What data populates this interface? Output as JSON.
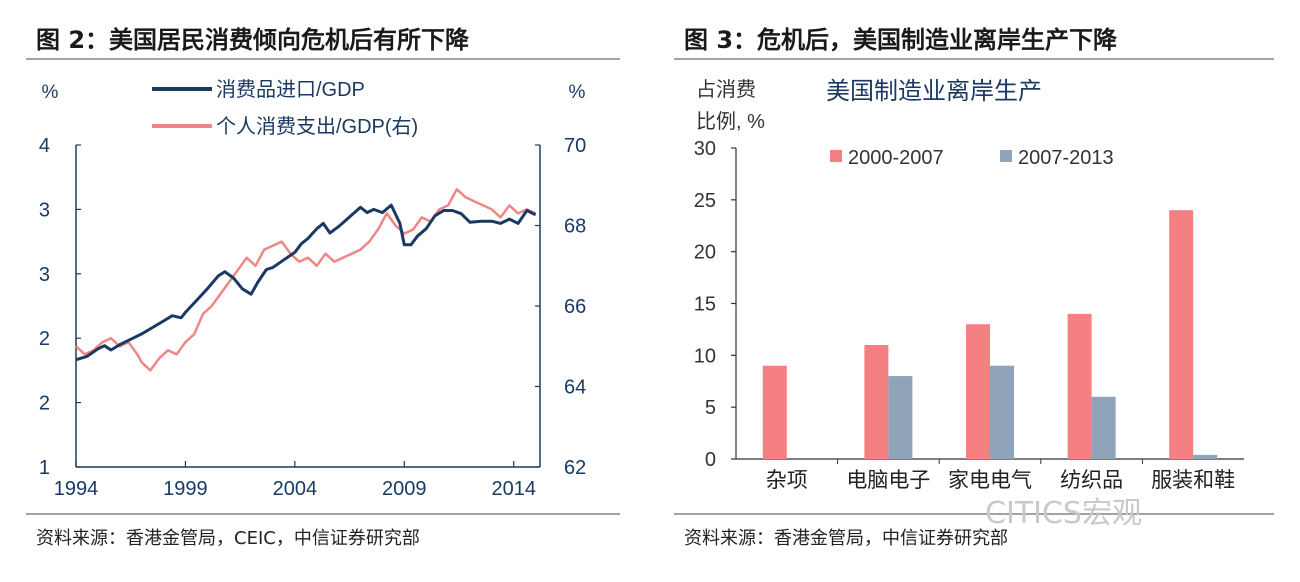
{
  "panels": {
    "left": {
      "title": "图 2：美国居民消费倾向危机后有所下降",
      "source": "资料来源：香港金管局，CEIC，中信证券研究部"
    },
    "right": {
      "title": "图 3：危机后，美国制造业离岸生产下降",
      "source": "资料来源：香港金管局，中信证券研究部"
    }
  },
  "watermark": "CITICS宏观",
  "chart_data": [
    {
      "type": "line",
      "title": "图 2：美国居民消费倾向危机后有所下降",
      "left_axis": {
        "unit": "%",
        "ylim": [
          1,
          4
        ],
        "tick_labels": [
          "1",
          "2",
          "2",
          "3",
          "3",
          "4"
        ]
      },
      "right_axis": {
        "unit": "%",
        "ylim": [
          62,
          70
        ],
        "tick_labels": [
          "62",
          "64",
          "66",
          "68",
          "70"
        ]
      },
      "x_ticks": [
        1994,
        1999,
        2004,
        2009,
        2014
      ],
      "xlim": [
        1994,
        2015.2
      ],
      "legend": [
        "消费品进口/GDP",
        "个人消费支出/GDP(右)"
      ],
      "series": [
        {
          "name": "消费品进口/GDP",
          "axis": "left",
          "color": "#1b3a63",
          "x": [
            1994.0,
            1994.5,
            1995.0,
            1995.3,
            1995.6,
            1996.0,
            1996.5,
            1997.0,
            1997.5,
            1998.0,
            1998.4,
            1998.8,
            1999.0,
            1999.5,
            2000.0,
            2000.5,
            2000.8,
            2001.2,
            2001.6,
            2002.0,
            2002.3,
            2002.7,
            2003.0,
            2003.5,
            2004.0,
            2004.3,
            2004.6,
            2005.0,
            2005.3,
            2005.6,
            2006.0,
            2006.5,
            2007.0,
            2007.3,
            2007.6,
            2008.0,
            2008.4,
            2008.8,
            2009.0,
            2009.3,
            2009.6,
            2010.0,
            2010.4,
            2010.8,
            2011.2,
            2011.6,
            2012.0,
            2012.5,
            2013.0,
            2013.4,
            2013.8,
            2014.2,
            2014.6,
            2015.0
          ],
          "values": [
            2.0,
            2.03,
            2.1,
            2.13,
            2.09,
            2.14,
            2.19,
            2.24,
            2.3,
            2.36,
            2.41,
            2.39,
            2.44,
            2.55,
            2.66,
            2.78,
            2.82,
            2.76,
            2.66,
            2.61,
            2.72,
            2.84,
            2.86,
            2.93,
            3.0,
            3.08,
            3.13,
            3.22,
            3.27,
            3.18,
            3.24,
            3.33,
            3.42,
            3.37,
            3.4,
            3.37,
            3.44,
            3.27,
            3.07,
            3.07,
            3.15,
            3.22,
            3.34,
            3.39,
            3.39,
            3.36,
            3.28,
            3.29,
            3.29,
            3.27,
            3.31,
            3.27,
            3.39,
            3.35
          ]
        },
        {
          "name": "个人消费支出/GDP(右)",
          "axis": "right",
          "color": "#f08686",
          "x": [
            1994.0,
            1994.4,
            1994.8,
            1995.2,
            1995.6,
            1996.0,
            1996.4,
            1996.8,
            1997.0,
            1997.4,
            1997.8,
            1998.2,
            1998.6,
            1999.0,
            1999.4,
            1999.8,
            2000.2,
            2000.6,
            2001.0,
            2001.4,
            2001.8,
            2002.2,
            2002.6,
            2003.0,
            2003.4,
            2003.8,
            2004.2,
            2004.6,
            2005.0,
            2005.4,
            2005.8,
            2006.2,
            2006.6,
            2007.0,
            2007.4,
            2007.8,
            2008.2,
            2008.6,
            2009.0,
            2009.4,
            2009.8,
            2010.2,
            2010.6,
            2011.0,
            2011.4,
            2011.8,
            2012.2,
            2012.6,
            2013.0,
            2013.4,
            2013.8,
            2014.2,
            2014.6,
            2015.0
          ],
          "values": [
            65.0,
            64.8,
            64.9,
            65.1,
            65.2,
            65.0,
            65.1,
            64.8,
            64.6,
            64.4,
            64.7,
            64.9,
            64.8,
            65.1,
            65.3,
            65.8,
            66.0,
            66.3,
            66.6,
            66.9,
            67.2,
            67.0,
            67.4,
            67.5,
            67.6,
            67.3,
            67.1,
            67.2,
            67.0,
            67.3,
            67.1,
            67.2,
            67.3,
            67.4,
            67.6,
            67.9,
            68.3,
            68.0,
            67.8,
            67.9,
            68.2,
            68.1,
            68.4,
            68.5,
            68.9,
            68.7,
            68.6,
            68.5,
            68.4,
            68.2,
            68.5,
            68.3,
            68.4,
            68.3
          ]
        }
      ]
    },
    {
      "type": "bar",
      "title": "美国制造业离岸生产",
      "ylabel": "占消费比例, %",
      "ylim": [
        0,
        30
      ],
      "y_ticks": [
        0,
        5,
        10,
        15,
        20,
        25,
        30
      ],
      "categories": [
        "杂项",
        "电脑电子",
        "家电电气",
        "纺织品",
        "服装和鞋"
      ],
      "series": [
        {
          "name": "2000-2007",
          "color": "#f58082",
          "values": [
            9,
            11,
            13,
            14,
            24
          ]
        },
        {
          "name": "2007-2013",
          "color": "#8fa4b8",
          "values": [
            0,
            8,
            9,
            6,
            0.4
          ]
        }
      ]
    }
  ]
}
